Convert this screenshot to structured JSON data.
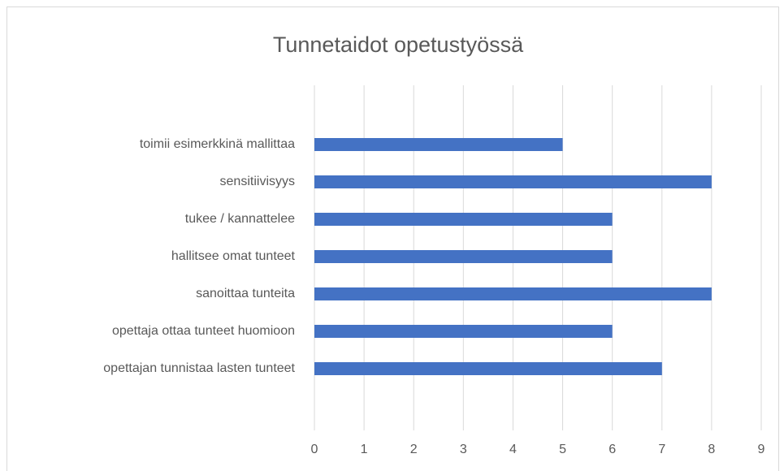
{
  "chart_data": {
    "type": "bar",
    "orientation": "horizontal",
    "title": "Tunnetaidot opetustyössä",
    "categories": [
      "toimii esimerkkinä mallittaa",
      "sensitiivisyys",
      "tukee / kannattelee",
      "hallitsee omat tunteet",
      "sanoittaa tunteita",
      "opettaja ottaa tunteet huomioon",
      "opettajan tunnistaa lasten tunteet"
    ],
    "values": [
      5,
      8,
      6,
      6,
      8,
      6,
      7
    ],
    "color": "#4472c4",
    "xlim": [
      0,
      9
    ],
    "xticks": [
      0,
      1,
      2,
      3,
      4,
      5,
      6,
      7,
      8,
      9
    ],
    "grid": true
  }
}
